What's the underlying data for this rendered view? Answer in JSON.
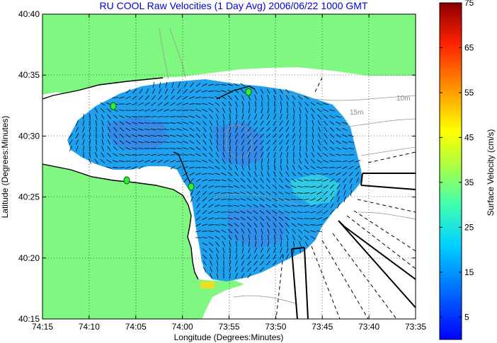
{
  "chart_data": {
    "type": "heatmap",
    "title": "RU COOL Raw Velocities (1 Day Avg) 2006/06/22 1000 GMT",
    "xlabel": "Longitude (Degrees:Minutes)",
    "ylabel": "Latitude (Degrees:Minutes)",
    "x_ticks": [
      "74:15",
      "74:10",
      "74:05",
      "74:00",
      "73:55",
      "73:50",
      "73:45",
      "73:40",
      "73:35"
    ],
    "y_ticks": [
      "40:40",
      "40:35",
      "40:30",
      "40:25",
      "40:20",
      "40:15"
    ],
    "xlim_minutes_west": [
      255,
      215
    ],
    "ylim_minutes_north": [
      15,
      40
    ],
    "colorbar": {
      "label": "Surface Velocity (cm/s)",
      "ticks": [
        "75",
        "65",
        "55",
        "45",
        "35",
        "25",
        "15",
        "5"
      ],
      "range": [
        0,
        75
      ]
    },
    "depth_labels": [
      "10m",
      "15m"
    ],
    "grid": true,
    "colors": {
      "land": "#80f780",
      "water_fill": "#1ea2f0",
      "title": "#0000dd"
    }
  }
}
